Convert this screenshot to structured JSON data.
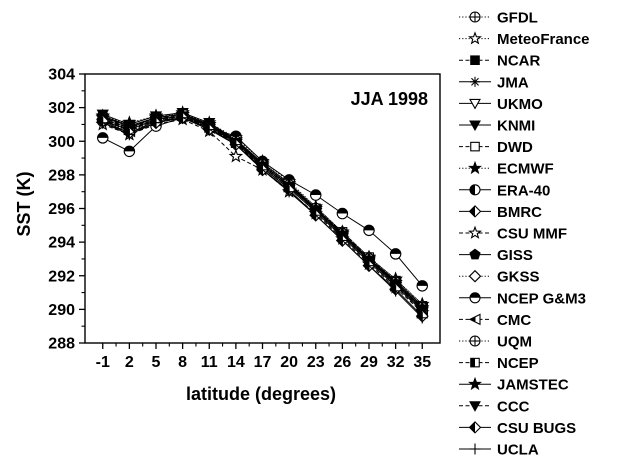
{
  "chart_data": {
    "type": "line",
    "annotation": "JJA 1998",
    "xlabel": "latitude (degrees)",
    "ylabel": "SST (K)",
    "x": [
      -1,
      2,
      5,
      8,
      11,
      14,
      17,
      20,
      23,
      26,
      29,
      32,
      35
    ],
    "xticks": [
      "-1",
      "2",
      "5",
      "8",
      "11",
      "14",
      "17",
      "20",
      "23",
      "26",
      "29",
      "32",
      "35"
    ],
    "ylim": [
      288,
      304
    ],
    "yticks": [
      "288",
      "290",
      "292",
      "294",
      "296",
      "298",
      "300",
      "302",
      "304"
    ],
    "grid": false,
    "legend_position": "right",
    "series": [
      {
        "name": "GFDL",
        "marker": "circle-plus",
        "line": "dotted",
        "values": [
          301.2,
          300.6,
          301.2,
          301.5,
          300.9,
          300.0,
          298.6,
          297.4,
          296.0,
          294.5,
          293.0,
          291.6,
          290.1
        ]
      },
      {
        "name": "MeteoFrance",
        "marker": "star-open",
        "line": "dotted",
        "values": [
          301.4,
          301.1,
          301.5,
          301.6,
          301.1,
          300.2,
          298.8,
          297.6,
          296.1,
          294.6,
          293.1,
          291.8,
          290.3
        ]
      },
      {
        "name": "NCAR",
        "marker": "square-filled",
        "line": "dashed",
        "values": [
          301.3,
          300.7,
          301.3,
          301.5,
          300.8,
          299.9,
          298.5,
          297.3,
          295.9,
          294.4,
          292.9,
          291.5,
          290.0
        ]
      },
      {
        "name": "JMA",
        "marker": "asterisk",
        "line": "solid",
        "values": [
          301.5,
          300.9,
          301.4,
          301.6,
          301.0,
          300.1,
          298.7,
          297.5,
          296.0,
          294.5,
          293.0,
          291.7,
          290.2
        ]
      },
      {
        "name": "UKMO",
        "marker": "triangle-down-open",
        "line": "solid",
        "values": [
          301.1,
          300.5,
          301.2,
          301.4,
          300.8,
          299.8,
          298.4,
          297.2,
          295.8,
          294.3,
          292.8,
          291.4,
          289.9
        ]
      },
      {
        "name": "KNMI",
        "marker": "triangle-down-filled",
        "line": "solid",
        "values": [
          301.6,
          301.0,
          301.5,
          301.7,
          301.1,
          300.1,
          298.6,
          297.4,
          295.9,
          294.4,
          292.9,
          291.6,
          290.1
        ]
      },
      {
        "name": "DWD",
        "marker": "square-open",
        "line": "dashed",
        "values": [
          301.4,
          300.8,
          301.4,
          301.6,
          300.9,
          300.0,
          298.6,
          297.4,
          296.0,
          294.6,
          293.1,
          291.7,
          290.2
        ]
      },
      {
        "name": "ECMWF",
        "marker": "star-filled",
        "line": "dotted",
        "values": [
          301.5,
          301.0,
          301.5,
          301.7,
          301.0,
          300.1,
          298.7,
          297.5,
          296.1,
          294.6,
          293.1,
          291.8,
          290.3
        ]
      },
      {
        "name": "ERA-40",
        "marker": "circle-half-left",
        "line": "solid",
        "values": [
          301.2,
          300.7,
          301.3,
          301.5,
          300.9,
          299.9,
          298.5,
          297.3,
          295.9,
          294.4,
          292.9,
          291.5,
          290.0
        ]
      },
      {
        "name": "BMRC",
        "marker": "diamond-half",
        "line": "solid",
        "values": [
          301.3,
          300.8,
          301.4,
          301.6,
          301.0,
          300.0,
          298.6,
          297.4,
          296.0,
          294.5,
          293.0,
          291.6,
          290.1
        ]
      },
      {
        "name": "CSU MMF",
        "marker": "star-open",
        "line": "dashed",
        "values": [
          301.0,
          300.4,
          301.0,
          301.3,
          300.6,
          299.1,
          298.3,
          297.0,
          295.7,
          294.2,
          292.7,
          291.3,
          289.8
        ]
      },
      {
        "name": "GISS",
        "marker": "pentagon-filled",
        "line": "solid",
        "values": [
          301.4,
          300.9,
          301.4,
          301.6,
          300.9,
          300.0,
          298.6,
          297.4,
          296.0,
          294.5,
          293.0,
          291.6,
          290.1
        ]
      },
      {
        "name": "GKSS",
        "marker": "diamond-open",
        "line": "dotted",
        "values": [
          301.3,
          300.8,
          301.4,
          301.6,
          301.0,
          300.1,
          298.7,
          297.5,
          296.0,
          294.6,
          293.1,
          291.7,
          290.2
        ]
      },
      {
        "name": "NCEP G&M3",
        "marker": "circle-half-top",
        "line": "solid",
        "values": [
          300.2,
          299.4,
          300.9,
          301.4,
          300.8,
          300.3,
          298.8,
          297.7,
          296.8,
          295.7,
          294.7,
          293.3,
          291.4
        ]
      },
      {
        "name": "CMC",
        "marker": "triangle-left-half",
        "line": "dashed",
        "values": [
          301.3,
          300.6,
          301.3,
          301.5,
          300.8,
          299.9,
          298.5,
          297.3,
          295.9,
          294.4,
          292.9,
          291.5,
          290.0
        ]
      },
      {
        "name": "UQM",
        "marker": "circle-plus-alt",
        "line": "dotted",
        "values": [
          301.2,
          300.7,
          301.3,
          301.5,
          300.9,
          300.0,
          298.6,
          297.4,
          296.0,
          294.5,
          293.0,
          291.6,
          290.1
        ]
      },
      {
        "name": "NCEP",
        "marker": "square-half",
        "line": "dashed",
        "values": [
          301.4,
          300.8,
          301.3,
          301.6,
          300.9,
          299.9,
          298.5,
          297.3,
          295.9,
          294.4,
          292.9,
          291.5,
          290.0
        ]
      },
      {
        "name": "JAMSTEC",
        "marker": "star-filled",
        "line": "solid",
        "values": [
          301.5,
          300.9,
          301.4,
          301.6,
          301.0,
          300.0,
          298.6,
          297.4,
          296.0,
          294.5,
          293.0,
          291.6,
          290.1
        ]
      },
      {
        "name": "CCC",
        "marker": "triangle-down-filled",
        "line": "dashed",
        "values": [
          301.3,
          300.7,
          301.2,
          301.5,
          300.8,
          299.9,
          298.4,
          297.2,
          295.8,
          294.3,
          292.8,
          291.4,
          289.9
        ]
      },
      {
        "name": "CSU BUGS",
        "marker": "diamond-half",
        "line": "solid",
        "values": [
          301.2,
          300.5,
          301.1,
          301.4,
          300.7,
          299.8,
          298.3,
          297.1,
          295.6,
          294.1,
          292.6,
          291.2,
          289.6
        ]
      },
      {
        "name": "UCLA",
        "marker": "plus",
        "line": "solid",
        "values": [
          301.1,
          300.4,
          301.1,
          301.4,
          300.7,
          299.8,
          298.3,
          297.0,
          295.6,
          294.1,
          292.6,
          291.1,
          289.5
        ]
      }
    ]
  }
}
